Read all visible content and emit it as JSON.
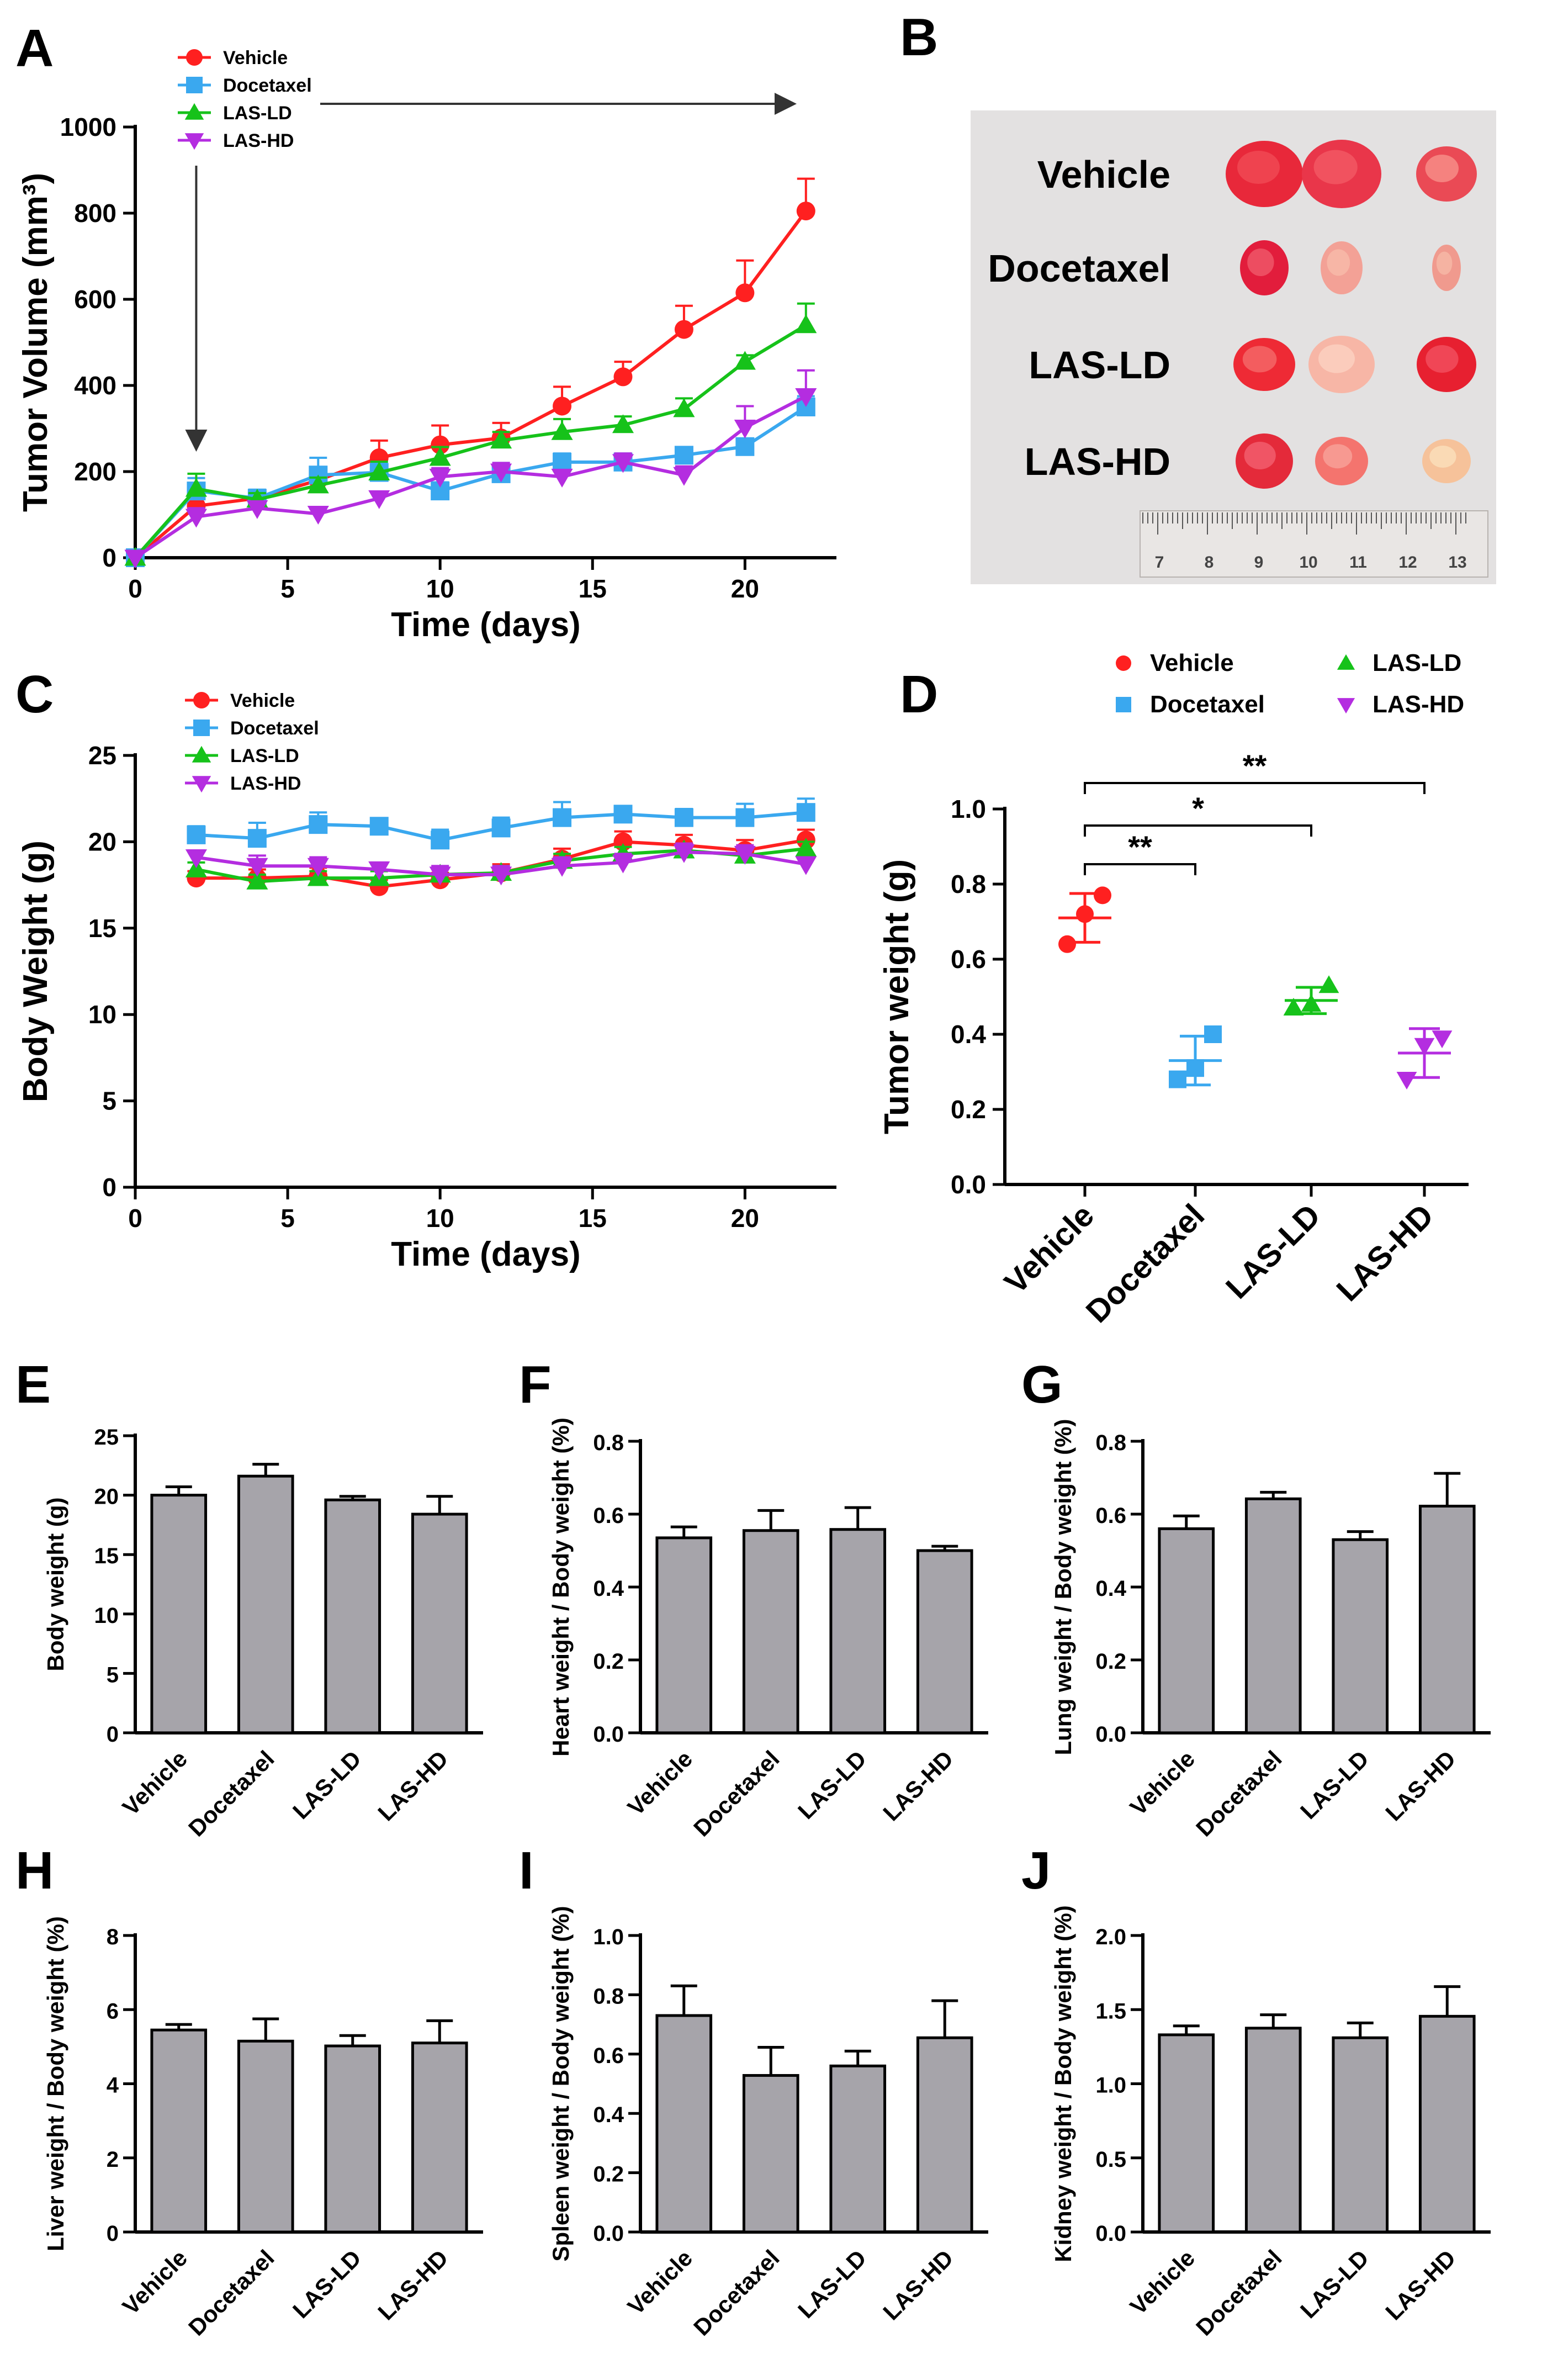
{
  "colors": {
    "vehicle": "#ff2020",
    "docetaxel": "#3aa8ef",
    "las_ld": "#16c21a",
    "las_hd": "#b42de0",
    "bar": "#a6a4aa",
    "photo_bg": "#e3e1e1"
  },
  "panel_labels": [
    "A",
    "B",
    "C",
    "D",
    "E",
    "F",
    "G",
    "H",
    "I",
    "J"
  ],
  "chart_data": [
    {
      "id": "A",
      "type": "line",
      "title": "",
      "xlabel": "Time (days)",
      "ylabel": "Tumor Volume (mm³)",
      "xlim": [
        0,
        23
      ],
      "ylim": [
        0,
        1000
      ],
      "xticks": [
        "0",
        "5",
        "10",
        "15",
        "20"
      ],
      "yticks": [
        "0",
        "200",
        "400",
        "600",
        "800",
        "1000"
      ],
      "x": [
        0,
        2,
        4,
        6,
        8,
        10,
        12,
        14,
        16,
        18,
        20,
        22
      ],
      "series": [
        {
          "name": "Vehicle",
          "marker": "circle",
          "values": [
            0,
            120,
            138,
            180,
            232,
            262,
            278,
            352,
            420,
            530,
            615,
            805
          ],
          "errors": [
            0,
            25,
            15,
            20,
            40,
            45,
            35,
            45,
            35,
            55,
            75,
            75
          ]
        },
        {
          "name": "Docetaxel",
          "marker": "square",
          "values": [
            0,
            155,
            138,
            192,
            198,
            155,
            195,
            222,
            222,
            238,
            258,
            350
          ],
          "errors": [
            0,
            30,
            20,
            40,
            20,
            20,
            25,
            20,
            20,
            15,
            15,
            25
          ]
        },
        {
          "name": "LAS-LD",
          "marker": "triangle-up",
          "values": [
            0,
            160,
            135,
            168,
            198,
            232,
            272,
            292,
            308,
            345,
            455,
            540
          ],
          "errors": [
            0,
            35,
            15,
            18,
            25,
            25,
            20,
            30,
            20,
            25,
            15,
            50
          ]
        },
        {
          "name": "LAS-HD",
          "marker": "triangle-down",
          "values": [
            0,
            95,
            115,
            102,
            138,
            188,
            200,
            188,
            222,
            192,
            302,
            375
          ],
          "errors": [
            0,
            20,
            15,
            12,
            15,
            20,
            20,
            15,
            20,
            20,
            50,
            60
          ]
        }
      ],
      "annotations": {
        "arrow_down_at_day": 2,
        "arrow_right": "treatment period"
      }
    },
    {
      "id": "C",
      "type": "line",
      "title": "",
      "xlabel": "Time (days)",
      "ylabel": "Body Weight (g)",
      "xlim": [
        0,
        23
      ],
      "ylim": [
        0,
        25
      ],
      "xticks": [
        "0",
        "5",
        "10",
        "15",
        "20"
      ],
      "yticks": [
        "0",
        "5",
        "10",
        "15",
        "20",
        "25"
      ],
      "x": [
        2,
        4,
        6,
        8,
        10,
        12,
        14,
        16,
        18,
        20,
        22
      ],
      "series": [
        {
          "name": "Vehicle",
          "marker": "circle",
          "values": [
            17.9,
            17.9,
            18.0,
            17.4,
            17.8,
            18.2,
            19.0,
            20.0,
            19.8,
            19.5,
            20.1
          ],
          "errors": [
            0.4,
            0.5,
            0.5,
            0.4,
            0.4,
            0.5,
            0.6,
            0.6,
            0.6,
            0.6,
            0.6
          ]
        },
        {
          "name": "Docetaxel",
          "marker": "square",
          "values": [
            20.4,
            20.2,
            21.0,
            20.9,
            20.1,
            20.8,
            21.4,
            21.6,
            21.4,
            21.4,
            21.7
          ],
          "errors": [
            0.5,
            0.9,
            0.7,
            0.4,
            0.6,
            0.6,
            0.9,
            0.4,
            0.5,
            0.8,
            0.8
          ]
        },
        {
          "name": "LAS-LD",
          "marker": "triangle-up",
          "values": [
            18.4,
            17.7,
            17.9,
            17.9,
            18.1,
            18.2,
            18.9,
            19.3,
            19.5,
            19.2,
            19.6
          ],
          "errors": [
            0.4,
            0.4,
            0.4,
            0.4,
            0.4,
            0.4,
            0.4,
            0.4,
            0.4,
            0.4,
            0.4
          ]
        },
        {
          "name": "LAS-HD",
          "marker": "triangle-down",
          "values": [
            19.1,
            18.6,
            18.6,
            18.4,
            18.1,
            18.1,
            18.6,
            18.8,
            19.4,
            19.3,
            18.7
          ],
          "errors": [
            0.4,
            0.6,
            0.5,
            0.4,
            0.5,
            0.5,
            0.5,
            0.5,
            0.5,
            0.5,
            0.4
          ]
        }
      ]
    },
    {
      "id": "D",
      "type": "scatter",
      "title": "",
      "xlabel": "",
      "ylabel": "Tumor weight (g)",
      "ylim": [
        0,
        1.0
      ],
      "yticks": [
        "0.0",
        "0.2",
        "0.4",
        "0.6",
        "0.8",
        "1.0"
      ],
      "categories": [
        "Vehicle",
        "Docetaxel",
        "LAS-LD",
        "LAS-HD"
      ],
      "groups": [
        {
          "name": "Vehicle",
          "marker": "circle",
          "points": [
            0.64,
            0.72,
            0.77
          ],
          "mean": 0.71,
          "sd": 0.065
        },
        {
          "name": "Docetaxel",
          "marker": "square",
          "points": [
            0.28,
            0.31,
            0.4
          ],
          "mean": 0.33,
          "sd": 0.065
        },
        {
          "name": "LAS-LD",
          "marker": "triangle-up",
          "points": [
            0.47,
            0.48,
            0.53
          ],
          "mean": 0.49,
          "sd": 0.035
        },
        {
          "name": "LAS-HD",
          "marker": "triangle-down",
          "points": [
            0.28,
            0.37,
            0.39
          ],
          "mean": 0.35,
          "sd": 0.065
        }
      ],
      "significance": [
        {
          "from": "Vehicle",
          "to": "Docetaxel",
          "label": "**"
        },
        {
          "from": "Vehicle",
          "to": "LAS-LD",
          "label": "*"
        },
        {
          "from": "Vehicle",
          "to": "LAS-HD",
          "label": "**"
        }
      ]
    },
    {
      "id": "E",
      "type": "bar",
      "title": "",
      "xlabel": "",
      "ylabel": "Body weight (g)",
      "ylim": [
        0,
        25
      ],
      "yticks": [
        "0",
        "5",
        "10",
        "15",
        "20",
        "25"
      ],
      "categories": [
        "Vehicle",
        "Docetaxel",
        "LAS-LD",
        "LAS-HD"
      ],
      "values": [
        20.0,
        21.6,
        19.6,
        18.4
      ],
      "errors": [
        0.7,
        1.0,
        0.3,
        1.5
      ]
    },
    {
      "id": "F",
      "type": "bar",
      "title": "",
      "xlabel": "",
      "ylabel": "Heart weight / Body weight (%)",
      "ylim": [
        0,
        0.8
      ],
      "yticks": [
        "0.0",
        "0.2",
        "0.4",
        "0.6",
        "0.8"
      ],
      "categories": [
        "Vehicle",
        "Docetaxel",
        "LAS-LD",
        "LAS-HD"
      ],
      "values": [
        0.535,
        0.555,
        0.558,
        0.5
      ],
      "errors": [
        0.03,
        0.055,
        0.06,
        0.012
      ]
    },
    {
      "id": "G",
      "type": "bar",
      "title": "",
      "xlabel": "",
      "ylabel": "Lung weight / Body weight (%)",
      "ylim": [
        0,
        0.8
      ],
      "yticks": [
        "0.0",
        "0.2",
        "0.4",
        "0.6",
        "0.8"
      ],
      "categories": [
        "Vehicle",
        "Docetaxel",
        "LAS-LD",
        "LAS-HD"
      ],
      "values": [
        0.56,
        0.642,
        0.53,
        0.622
      ],
      "errors": [
        0.035,
        0.018,
        0.022,
        0.09
      ]
    },
    {
      "id": "H",
      "type": "bar",
      "title": "",
      "xlabel": "",
      "ylabel": "Liver weight / Body weight (%)",
      "ylim": [
        0,
        8
      ],
      "yticks": [
        "0",
        "2",
        "4",
        "6",
        "8"
      ],
      "categories": [
        "Vehicle",
        "Docetaxel",
        "LAS-LD",
        "LAS-HD"
      ],
      "values": [
        5.45,
        5.15,
        5.02,
        5.1
      ],
      "errors": [
        0.15,
        0.6,
        0.28,
        0.6
      ]
    },
    {
      "id": "I",
      "type": "bar",
      "title": "",
      "xlabel": "",
      "ylabel": "Spleen weight / Body weight (%)",
      "ylim": [
        0,
        1.0
      ],
      "yticks": [
        "0.0",
        "0.2",
        "0.4",
        "0.6",
        "0.8",
        "1.0"
      ],
      "categories": [
        "Vehicle",
        "Docetaxel",
        "LAS-LD",
        "LAS-HD"
      ],
      "values": [
        0.73,
        0.528,
        0.56,
        0.655
      ],
      "errors": [
        0.1,
        0.095,
        0.05,
        0.125
      ]
    },
    {
      "id": "J",
      "type": "bar",
      "title": "",
      "xlabel": "",
      "ylabel": "Kidney weight / Body weight (%)",
      "ylim": [
        0,
        2.0
      ],
      "yticks": [
        "0.0",
        "0.5",
        "1.0",
        "1.5",
        "2.0"
      ],
      "categories": [
        "Vehicle",
        "Docetaxel",
        "LAS-LD",
        "LAS-HD"
      ],
      "values": [
        1.33,
        1.375,
        1.31,
        1.455
      ],
      "errors": [
        0.06,
        0.09,
        0.1,
        0.2
      ]
    }
  ],
  "photo": {
    "rows": [
      "Vehicle",
      "Docetaxel",
      "LAS-LD",
      "LAS-HD"
    ],
    "ruler_labels": [
      "7",
      "8",
      "9",
      "10",
      "11",
      "12",
      "13"
    ]
  }
}
